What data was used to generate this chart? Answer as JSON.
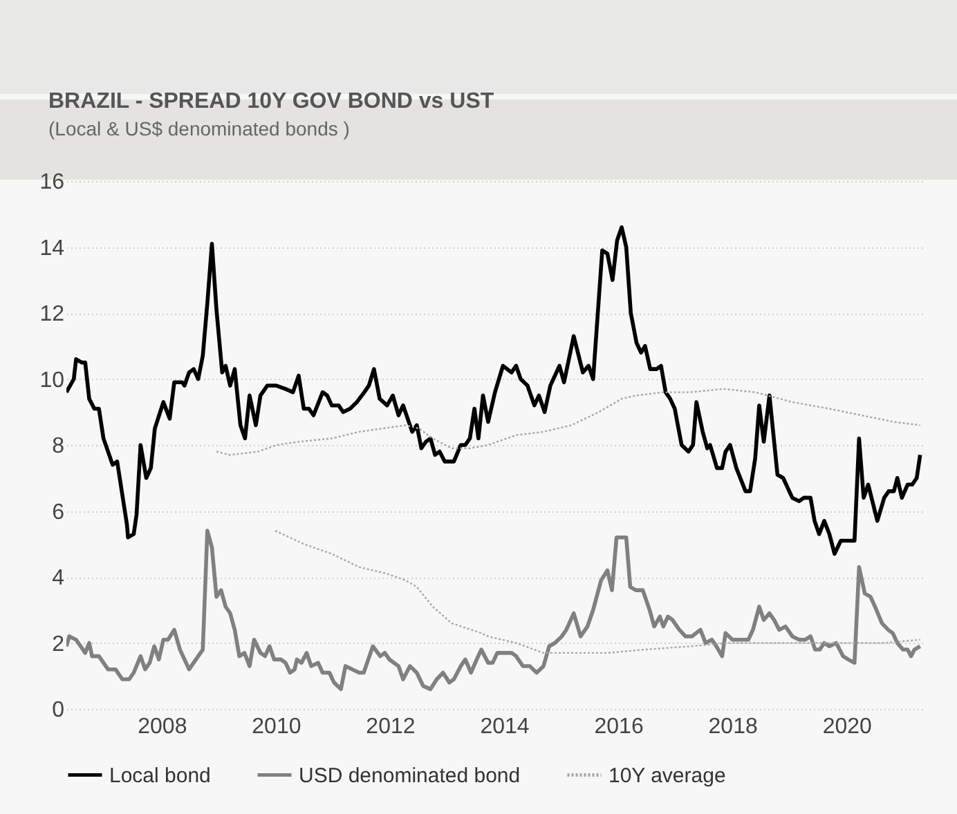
{
  "chart_data": {
    "type": "line",
    "title": "BRAZIL - SPREAD 10Y GOV BOND vs UST",
    "subtitle": "(Local & US$ denominated bonds )",
    "xlim": [
      2006.33,
      2021.33
    ],
    "xticks": [
      2008,
      2010,
      2012,
      2014,
      2016,
      2018,
      2020
    ],
    "ylim": [
      0,
      16
    ],
    "yticks": [
      0,
      2,
      4,
      6,
      8,
      10,
      12,
      14,
      16
    ],
    "grid": "y",
    "legend": "bottom",
    "series": [
      {
        "name": "Local bond",
        "color": "#000000",
        "line_style": "solid",
        "x": [
          2006.33,
          2006.46,
          2006.5,
          2006.6,
          2006.66,
          2006.73,
          2006.82,
          2006.9,
          2006.98,
          2007.14,
          2007.22,
          2007.39,
          2007.41,
          2007.51,
          2007.56,
          2007.63,
          2007.73,
          2007.81,
          2007.88,
          2008.03,
          2008.14,
          2008.22,
          2008.36,
          2008.4,
          2008.48,
          2008.56,
          2008.64,
          2008.72,
          2008.8,
          2008.88,
          2008.96,
          2009.06,
          2009.12,
          2009.2,
          2009.28,
          2009.38,
          2009.46,
          2009.54,
          2009.65,
          2009.73,
          2009.85,
          2010.01,
          2010.17,
          2010.3,
          2010.4,
          2010.49,
          2010.58,
          2010.66,
          2010.82,
          2010.9,
          2010.98,
          2011.1,
          2011.18,
          2011.3,
          2011.42,
          2011.55,
          2011.63,
          2011.72,
          2011.82,
          2011.95,
          2012.05,
          2012.15,
          2012.23,
          2012.35,
          2012.39,
          2012.47,
          2012.55,
          2012.63,
          2012.71,
          2012.79,
          2012.87,
          2012.96,
          2013.12,
          2013.24,
          2013.32,
          2013.4,
          2013.48,
          2013.55,
          2013.63,
          2013.72,
          2013.84,
          2013.98,
          2014.13,
          2014.21,
          2014.29,
          2014.41,
          2014.53,
          2014.61,
          2014.71,
          2014.81,
          2014.97,
          2015.05,
          2015.22,
          2015.38,
          2015.48,
          2015.56,
          2015.72,
          2015.81,
          2015.9,
          2015.98,
          2016.06,
          2016.14,
          2016.22,
          2016.32,
          2016.4,
          2016.47,
          2016.56,
          2016.67,
          2016.75,
          2016.83,
          2016.91,
          2016.99,
          2017.11,
          2017.23,
          2017.31,
          2017.37,
          2017.48,
          2017.56,
          2017.61,
          2017.73,
          2017.82,
          2017.88,
          2017.96,
          2018.07,
          2018.23,
          2018.31,
          2018.4,
          2018.47,
          2018.55,
          2018.65,
          2018.79,
          2018.89,
          2019.05,
          2019.17,
          2019.25,
          2019.37,
          2019.44,
          2019.52,
          2019.61,
          2019.7,
          2019.79,
          2019.9,
          2020.02,
          2020.14,
          2020.22,
          2020.3,
          2020.38,
          2020.54,
          2020.66,
          2020.74,
          2020.83,
          2020.89,
          2020.97,
          2021.07,
          2021.15,
          2021.23,
          2021.29
        ],
        "values": [
          9.6,
          10.0,
          10.6,
          10.5,
          10.5,
          9.4,
          9.1,
          9.1,
          8.2,
          7.4,
          7.5,
          5.6,
          5.2,
          5.3,
          5.9,
          8.0,
          7.0,
          7.3,
          8.5,
          9.3,
          8.8,
          9.9,
          9.9,
          9.8,
          10.2,
          10.3,
          10.0,
          10.7,
          12.3,
          14.1,
          12.1,
          10.2,
          10.4,
          9.8,
          10.3,
          8.6,
          8.2,
          9.5,
          8.6,
          9.5,
          9.8,
          9.8,
          9.7,
          9.6,
          10.1,
          9.1,
          9.1,
          8.9,
          9.6,
          9.5,
          9.2,
          9.2,
          9.0,
          9.1,
          9.3,
          9.6,
          9.8,
          10.3,
          9.4,
          9.2,
          9.5,
          8.9,
          9.2,
          8.6,
          8.4,
          8.6,
          7.9,
          8.1,
          8.2,
          7.7,
          7.8,
          7.5,
          7.5,
          8.0,
          8.0,
          8.2,
          9.1,
          8.2,
          9.5,
          8.7,
          9.6,
          10.4,
          10.2,
          10.4,
          10.0,
          9.8,
          9.2,
          9.5,
          9.0,
          9.8,
          10.4,
          9.9,
          11.3,
          10.2,
          10.4,
          10.0,
          13.9,
          13.8,
          13.0,
          14.2,
          14.6,
          14.0,
          12.0,
          11.1,
          10.8,
          11.0,
          10.3,
          10.3,
          10.4,
          9.6,
          9.4,
          9.1,
          8.0,
          7.8,
          8.0,
          9.3,
          8.4,
          7.9,
          8.0,
          7.3,
          7.3,
          7.8,
          8.0,
          7.3,
          6.6,
          6.6,
          7.6,
          9.2,
          8.1,
          9.5,
          7.1,
          7.0,
          6.4,
          6.3,
          6.4,
          6.4,
          5.7,
          5.3,
          5.7,
          5.3,
          4.7,
          5.1,
          5.1,
          5.1,
          8.2,
          6.4,
          6.8,
          5.7,
          6.4,
          6.6,
          6.6,
          7.0,
          6.4,
          6.8,
          6.8,
          7.0,
          7.7
        ]
      },
      {
        "name": "USD denominated bond",
        "color": "#808080",
        "line_style": "solid",
        "x": [
          2006.33,
          2006.38,
          2006.5,
          2006.58,
          2006.66,
          2006.73,
          2006.78,
          2006.9,
          2006.98,
          2007.06,
          2007.19,
          2007.31,
          2007.43,
          2007.51,
          2007.63,
          2007.71,
          2007.79,
          2007.87,
          2007.95,
          2008.03,
          2008.11,
          2008.22,
          2008.32,
          2008.4,
          2008.48,
          2008.6,
          2008.72,
          2008.8,
          2008.88,
          2008.96,
          2009.04,
          2009.12,
          2009.2,
          2009.28,
          2009.36,
          2009.45,
          2009.54,
          2009.62,
          2009.73,
          2009.81,
          2009.89,
          2009.97,
          2010.09,
          2010.17,
          2010.25,
          2010.33,
          2010.37,
          2010.45,
          2010.54,
          2010.62,
          2010.74,
          2010.82,
          2010.94,
          2011.02,
          2011.14,
          2011.22,
          2011.34,
          2011.46,
          2011.54,
          2011.62,
          2011.7,
          2011.83,
          2011.91,
          2011.99,
          2012.15,
          2012.23,
          2012.35,
          2012.47,
          2012.58,
          2012.71,
          2012.82,
          2012.93,
          2013.04,
          2013.12,
          2013.24,
          2013.32,
          2013.42,
          2013.52,
          2013.6,
          2013.72,
          2013.8,
          2013.88,
          2014.01,
          2014.13,
          2014.21,
          2014.33,
          2014.45,
          2014.57,
          2014.69,
          2014.79,
          2014.89,
          2015.01,
          2015.09,
          2015.22,
          2015.34,
          2015.46,
          2015.56,
          2015.7,
          2015.81,
          2015.89,
          2015.97,
          2016.14,
          2016.21,
          2016.31,
          2016.43,
          2016.55,
          2016.63,
          2016.73,
          2016.79,
          2016.87,
          2016.95,
          2017.07,
          2017.18,
          2017.29,
          2017.44,
          2017.53,
          2017.64,
          2017.72,
          2017.82,
          2017.88,
          2018.0,
          2018.15,
          2018.28,
          2018.36,
          2018.47,
          2018.55,
          2018.65,
          2018.73,
          2018.82,
          2018.93,
          2019.05,
          2019.17,
          2019.28,
          2019.37,
          2019.45,
          2019.53,
          2019.61,
          2019.7,
          2019.82,
          2019.94,
          2020.03,
          2020.14,
          2020.22,
          2020.32,
          2020.42,
          2020.5,
          2020.62,
          2020.73,
          2020.81,
          2020.89,
          2020.99,
          2021.07,
          2021.13,
          2021.19,
          2021.29
        ],
        "values": [
          1.9,
          2.2,
          2.1,
          1.9,
          1.7,
          2.0,
          1.6,
          1.6,
          1.4,
          1.2,
          1.2,
          0.9,
          0.9,
          1.1,
          1.6,
          1.2,
          1.4,
          1.9,
          1.5,
          2.1,
          2.1,
          2.4,
          1.8,
          1.5,
          1.2,
          1.5,
          1.8,
          5.4,
          4.9,
          3.4,
          3.6,
          3.1,
          2.9,
          2.4,
          1.6,
          1.7,
          1.3,
          2.1,
          1.7,
          1.6,
          1.9,
          1.5,
          1.5,
          1.4,
          1.1,
          1.2,
          1.5,
          1.4,
          1.7,
          1.3,
          1.4,
          1.1,
          1.1,
          0.8,
          0.6,
          1.3,
          1.2,
          1.1,
          1.1,
          1.5,
          1.9,
          1.6,
          1.7,
          1.5,
          1.3,
          0.9,
          1.3,
          1.1,
          0.7,
          0.6,
          0.9,
          1.1,
          0.8,
          0.9,
          1.3,
          1.5,
          1.1,
          1.5,
          1.8,
          1.4,
          1.4,
          1.7,
          1.7,
          1.7,
          1.6,
          1.3,
          1.3,
          1.1,
          1.3,
          1.9,
          2.0,
          2.2,
          2.4,
          2.9,
          2.2,
          2.5,
          3.0,
          3.9,
          4.2,
          3.6,
          5.2,
          5.2,
          3.7,
          3.6,
          3.6,
          3.0,
          2.5,
          2.8,
          2.5,
          2.8,
          2.7,
          2.4,
          2.2,
          2.2,
          2.4,
          2.0,
          2.1,
          1.9,
          1.6,
          2.3,
          2.1,
          2.1,
          2.1,
          2.4,
          3.1,
          2.7,
          2.9,
          2.7,
          2.4,
          2.5,
          2.2,
          2.1,
          2.1,
          2.2,
          1.8,
          1.8,
          2.0,
          1.9,
          2.0,
          1.6,
          1.5,
          1.4,
          4.3,
          3.5,
          3.4,
          3.1,
          2.6,
          2.4,
          2.3,
          2.0,
          1.8,
          1.8,
          1.6,
          1.8,
          1.9
        ]
      },
      {
        "name": "10Y average",
        "color": "#a6a6a6",
        "line_style": "dotted",
        "x": [
          2008.96,
          2009.2,
          2009.69,
          2010.01,
          2010.41,
          2010.98,
          2011.46,
          2011.87,
          2012.27,
          2012.51,
          2012.75,
          2013.08,
          2013.4,
          2013.72,
          2014.21,
          2014.69,
          2015.18,
          2015.66,
          2016.06,
          2016.31,
          2016.79,
          2017.27,
          2017.84,
          2018.4,
          2019.05,
          2019.7,
          2020.26,
          2020.83,
          2021.29
        ],
        "values": [
          7.8,
          7.7,
          7.8,
          8.0,
          8.1,
          8.2,
          8.4,
          8.5,
          8.6,
          8.5,
          8.2,
          7.9,
          7.9,
          8.0,
          8.3,
          8.4,
          8.6,
          9.0,
          9.4,
          9.5,
          9.6,
          9.6,
          9.7,
          9.6,
          9.3,
          9.1,
          8.9,
          8.7,
          8.6
        ]
      },
      {
        "color": "#a6a6a6",
        "line_style": "dotted",
        "x": [
          2009.99,
          2010.49,
          2010.98,
          2011.46,
          2011.95,
          2012.27,
          2012.47,
          2012.75,
          2013.08,
          2013.6,
          2013.72,
          2014.21,
          2014.69,
          2015.18,
          2015.82,
          2016.47,
          2017.27,
          2017.92,
          2018.73,
          2019.53,
          2020.18,
          2020.66,
          2021.29
        ],
        "values": [
          5.4,
          5.0,
          4.7,
          4.3,
          4.1,
          3.9,
          3.7,
          3.1,
          2.6,
          2.3,
          2.2,
          2.0,
          1.7,
          1.7,
          1.7,
          1.8,
          1.9,
          2.0,
          2.0,
          2.0,
          2.0,
          2.0,
          2.1
        ]
      }
    ]
  }
}
